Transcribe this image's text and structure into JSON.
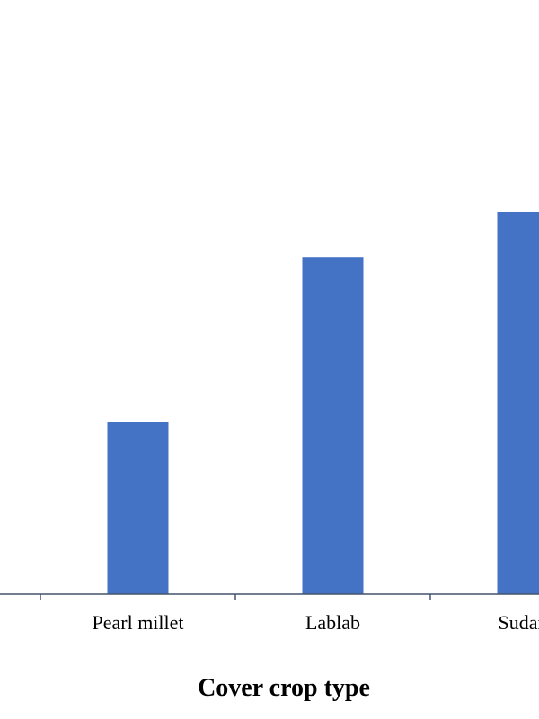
{
  "chart_data": {
    "type": "bar",
    "x_label": "Cover crop type",
    "categories": [
      "Pearl millet",
      "Lablab",
      "Sudang"
    ],
    "values": [
      28.9,
      56.7,
      64.3
    ],
    "color": "#4472c4",
    "ylim": [
      0,
      100
    ]
  }
}
